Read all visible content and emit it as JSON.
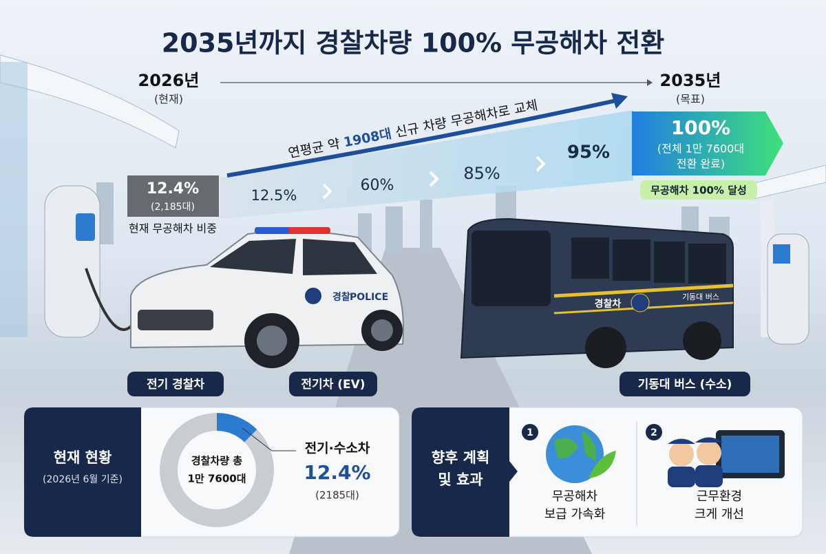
{
  "title": "2035년까지 경찰차량 100% 무공해차 전환",
  "timeline": {
    "start_year": "2026년",
    "start_note": "(현재)",
    "end_year": "2035년",
    "end_note": "(목표)",
    "trend_prefix": "연평균 약 ",
    "trend_highlight": "1908대",
    "trend_suffix": " 신규 차량 무공해차로 교체",
    "current_share": "12.4%",
    "current_count": "(2,185대)",
    "current_caption": "현재 무공해차 비중",
    "steps": [
      "12.5%",
      "60%",
      "85%",
      "95%"
    ],
    "goal_share": "100%",
    "goal_line1": "(전체 1만 7600대",
    "goal_line2": "전환 완료)",
    "goal_badge": "무공해차 100% 달성"
  },
  "vehicles": {
    "car_label": "전기 경찰차",
    "ev_label": "전기차 (EV)",
    "bus_label": "기동대 버스 (수소)",
    "car_text1": "경찰",
    "car_text2": "POLICE",
    "bus_text1": "경찰차",
    "bus_text2": "기동대 버스"
  },
  "status": {
    "title": "현재 현황",
    "date": "(2026년 6월 기준)",
    "center_line1": "경찰차량 총",
    "center_line2": "1만 7600대",
    "share_name": "전기·수소차",
    "share": {
      "value": 12.4,
      "label": "12.4%"
    },
    "share_count": "(2185대)"
  },
  "plan": {
    "title_line1": "향후 계획",
    "title_line2": "및 효과",
    "items": [
      {
        "number": "1",
        "line1": "무공해차",
        "line2": "보급 가속화"
      },
      {
        "number": "2",
        "line1": "근무환경",
        "line2": "크게 개선"
      }
    ]
  }
}
